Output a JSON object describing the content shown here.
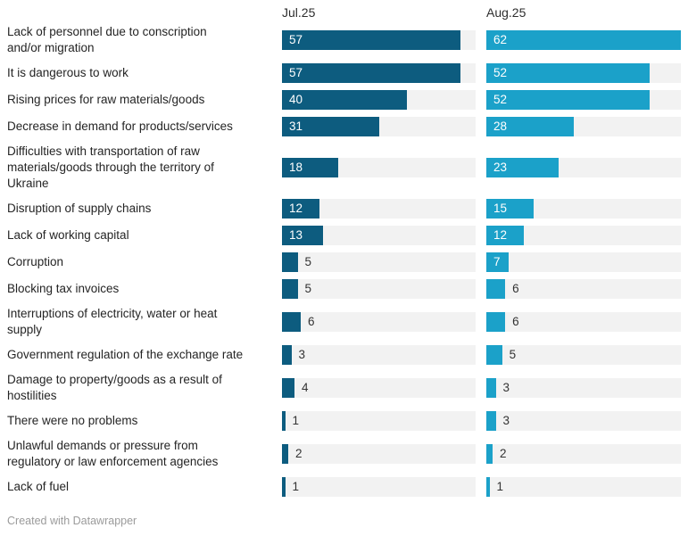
{
  "chart_data": {
    "type": "bar",
    "orientation": "horizontal",
    "title": "",
    "xlabel": "",
    "ylabel": "",
    "xmax": 62,
    "grid": false,
    "legend_position": "column-headers",
    "track_color": "#f2f2f2",
    "categories": [
      "Lack of personnel due to conscription and/or migration",
      "It is dangerous to work",
      "Rising prices for raw materials/goods",
      "Decrease in demand for products/services",
      "Difficulties with transportation of raw materials/goods through the territory of Ukraine",
      "Disruption of supply chains",
      "Lack of working capital",
      "Corruption",
      "Blocking tax invoices",
      "Interruptions of electricity, water or heat supply",
      "Government regulation of the exchange rate",
      "Damage to property/goods as a result of hostilities",
      "There were no problems",
      "Unlawful demands or pressure from regulatory or law enforcement agencies",
      "Lack of fuel"
    ],
    "category_lines": [
      [
        "Lack of personnel due to conscription",
        "and/or migration"
      ],
      [
        "It is dangerous to work"
      ],
      [
        "Rising prices for raw materials/goods"
      ],
      [
        "Decrease in demand for products/services"
      ],
      [
        "Difficulties with transportation of raw",
        "materials/goods through the territory of",
        "Ukraine"
      ],
      [
        "Disruption of supply chains"
      ],
      [
        "Lack of working capital"
      ],
      [
        "Corruption"
      ],
      [
        "Blocking tax invoices"
      ],
      [
        "Interruptions of electricity, water or heat",
        "supply"
      ],
      [
        "Government regulation of the exchange rate"
      ],
      [
        "Damage to property/goods as a result of",
        "hostilities"
      ],
      [
        "There were no problems"
      ],
      [
        "Unlawful demands or pressure from",
        "regulatory or law enforcement agencies"
      ],
      [
        "Lack of fuel"
      ]
    ],
    "series": [
      {
        "name": "Jul.25",
        "key": "jul",
        "color": "#0d5c7f",
        "values": [
          57,
          57,
          40,
          31,
          18,
          12,
          13,
          5,
          5,
          6,
          3,
          4,
          1,
          2,
          1
        ]
      },
      {
        "name": "Aug.25",
        "key": "aug",
        "color": "#1ba1c9",
        "values": [
          62,
          52,
          52,
          28,
          23,
          15,
          12,
          7,
          6,
          6,
          5,
          3,
          3,
          2,
          1
        ]
      }
    ]
  },
  "footer": {
    "credit": "Created with Datawrapper"
  }
}
